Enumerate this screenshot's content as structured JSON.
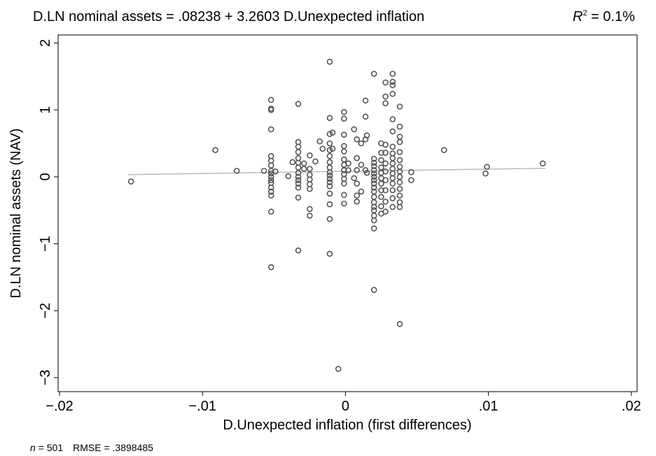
{
  "chart_data": {
    "type": "scatter",
    "title": "D.LN nominal assets = .08238 + 3.2603 D.Unexpected inflation",
    "r2_symbol": "R",
    "r2_sup": "2",
    "r2_text": " = 0.1%",
    "x_label": "D.Unexpected inflation (first differences)",
    "y_label": "D.LN nominal assets (NAV)",
    "footer_n_symbol": "n",
    "footer_n_text": " = 501",
    "footer_rmse": "RMSE = .3898485",
    "color": "#555555",
    "x": [
      -0.015,
      -0.0091,
      -0.0076,
      -0.0057,
      -0.0052,
      -0.0052,
      -0.0052,
      -0.0052,
      -0.0052,
      -0.0052,
      -0.0052,
      -0.0052,
      -0.0052,
      -0.0052,
      -0.0052,
      -0.0052,
      -0.0052,
      -0.0052,
      -0.0052,
      -0.0052,
      -0.0052,
      -0.0049,
      -0.004,
      -0.0037,
      -0.0033,
      -0.0033,
      -0.0033,
      -0.0033,
      -0.0033,
      -0.0033,
      -0.0033,
      -0.0033,
      -0.0033,
      -0.0033,
      -0.0033,
      -0.0033,
      -0.0033,
      -0.0033,
      -0.0029,
      -0.0029,
      -0.0025,
      -0.0025,
      -0.0025,
      -0.0025,
      -0.0025,
      -0.0025,
      -0.0025,
      -0.0025,
      -0.0021,
      -0.0018,
      -0.0016,
      -0.0011,
      -0.0011,
      -0.0011,
      -0.0011,
      -0.0011,
      -0.0011,
      -0.0011,
      -0.0011,
      -0.0011,
      -0.0011,
      -0.0011,
      -0.0011,
      -0.0011,
      -0.0011,
      -0.0011,
      -0.0011,
      -0.0011,
      -0.0009,
      -0.0009,
      -0.0005,
      -0.0001,
      -0.0001,
      -0.0001,
      -0.0001,
      -0.0001,
      -0.0001,
      -0.0001,
      -0.0001,
      -0.0001,
      -0.0001,
      -0.0001,
      -0.0001,
      -0.0001,
      0.0002,
      0.0002,
      0.0006,
      0.0006,
      0.0008,
      0.0008,
      0.0008,
      0.0008,
      0.0008,
      0.0008,
      0.0011,
      0.0011,
      0.0011,
      0.0014,
      0.0014,
      0.0014,
      0.0014,
      0.0015,
      0.0015,
      0.002,
      0.002,
      0.002,
      0.002,
      0.002,
      0.002,
      0.002,
      0.002,
      0.002,
      0.002,
      0.002,
      0.002,
      0.002,
      0.002,
      0.002,
      0.002,
      0.002,
      0.002,
      0.002,
      0.0025,
      0.0025,
      0.0025,
      0.0025,
      0.0025,
      0.0025,
      0.0025,
      0.0025,
      0.0025,
      0.0025,
      0.0025,
      0.0028,
      0.0028,
      0.0028,
      0.0028,
      0.0028,
      0.0028,
      0.0028,
      0.0028,
      0.0028,
      0.0028,
      0.0028,
      0.0033,
      0.0033,
      0.0033,
      0.0033,
      0.0033,
      0.0033,
      0.0033,
      0.0033,
      0.0033,
      0.0033,
      0.0033,
      0.0033,
      0.0033,
      0.0033,
      0.0033,
      0.0033,
      0.0033,
      0.0038,
      0.0038,
      0.0038,
      0.0038,
      0.0038,
      0.0038,
      0.0038,
      0.0038,
      0.0038,
      0.0038,
      0.0038,
      0.0038,
      0.0038,
      0.0038,
      0.0038,
      0.0046,
      0.0046,
      0.0069,
      0.0098,
      0.0099,
      0.0138
    ],
    "values": [
      -0.07,
      0.4,
      0.09,
      0.09,
      1.15,
      1.02,
      1.0,
      0.71,
      0.31,
      0.24,
      0.17,
      0.09,
      0.05,
      0,
      -0.05,
      -0.09,
      -0.16,
      -0.22,
      -0.28,
      -0.52,
      -1.35,
      0.08,
      0.01,
      0.22,
      1.09,
      0.52,
      0.45,
      0.37,
      0.28,
      0.21,
      0.14,
      0.06,
      0,
      -0.05,
      -0.1,
      -0.16,
      -0.31,
      -1.1,
      0.2,
      0.12,
      0.32,
      0.12,
      0.03,
      -0.04,
      -0.11,
      -0.18,
      -0.48,
      -0.58,
      0.23,
      0.53,
      0.42,
      1.72,
      0.88,
      0.64,
      0.5,
      0.4,
      0.31,
      0.22,
      0.14,
      0.07,
      0.02,
      -0.03,
      -0.08,
      -0.14,
      -0.25,
      -0.41,
      -0.63,
      -1.15,
      0.66,
      0.42,
      -2.87,
      0.97,
      0.87,
      0.63,
      0.46,
      0.38,
      0.26,
      0.18,
      0.1,
      0.04,
      -0.03,
      -0.1,
      -0.27,
      -0.4,
      0.2,
      0.1,
      0.71,
      -0.02,
      0.56,
      0.28,
      0.1,
      -0.1,
      -0.28,
      -0.37,
      0.5,
      0.18,
      -0.22,
      1.14,
      0.9,
      0.56,
      0.1,
      0.62,
      0.06,
      1.54,
      0.27,
      0.21,
      0.16,
      0.1,
      0.05,
      0,
      -0.05,
      -0.1,
      -0.16,
      -0.22,
      -0.3,
      -0.38,
      -0.45,
      -0.5,
      -0.58,
      -0.65,
      -0.77,
      -1.69,
      0.5,
      0.36,
      0.25,
      0.14,
      0.06,
      -0.02,
      -0.1,
      -0.2,
      -0.3,
      -0.44,
      -0.55,
      1.41,
      1.2,
      1.1,
      0.48,
      0.36,
      0.2,
      0.08,
      -0.05,
      -0.2,
      -0.37,
      -0.52,
      1.54,
      1.42,
      1.37,
      1.24,
      0.86,
      0.68,
      0.45,
      0.35,
      0.28,
      0.2,
      0.12,
      0.05,
      -0.02,
      -0.1,
      -0.2,
      -0.32,
      -0.45,
      1.05,
      0.75,
      0.6,
      0.52,
      0.37,
      0.25,
      0.15,
      0.08,
      0,
      -0.08,
      -0.18,
      -0.28,
      -0.38,
      -0.45,
      -2.2,
      0.07,
      -0.05,
      0.4,
      0.05,
      0.15,
      0.2
    ],
    "fit": {
      "x": [
        -0.0152,
        0.014
      ],
      "values": [
        0.033,
        0.128
      ],
      "color": "#bbbbbb"
    },
    "xlim": [
      -0.0201,
      0.0204
    ],
    "ylim": [
      -3.21,
      2.12
    ],
    "xticks": [
      {
        "value": -0.02,
        "label": "−.02"
      },
      {
        "value": -0.01,
        "label": "−.01"
      },
      0,
      {
        "value": 0.01,
        "label": ".01"
      },
      {
        "value": 0.02,
        "label": ".02"
      }
    ],
    "yticks": [
      2,
      1,
      0,
      {
        "value": -1,
        "label": "−1"
      },
      {
        "value": -2,
        "label": "−2"
      },
      {
        "value": -3,
        "label": "−3"
      }
    ],
    "grid": false
  }
}
